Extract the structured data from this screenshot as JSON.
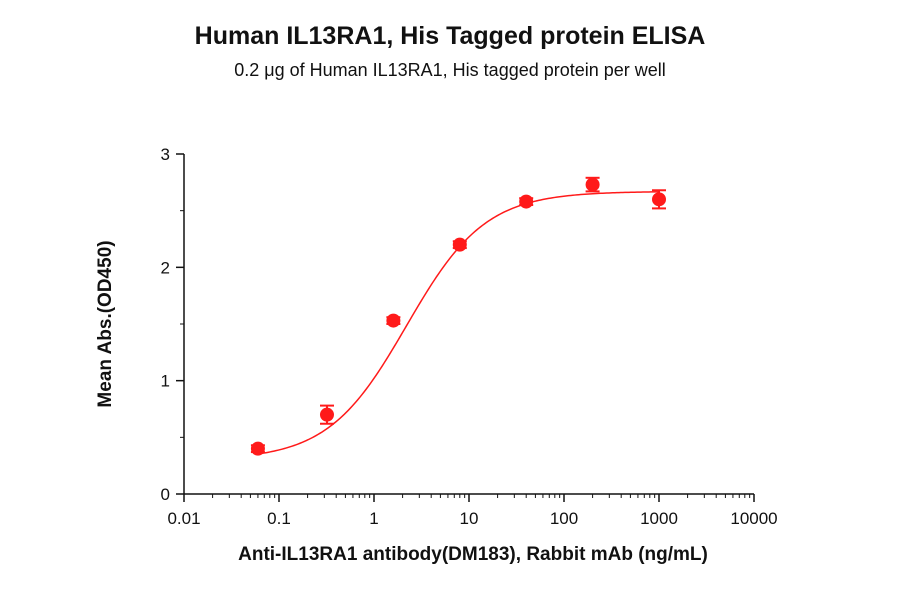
{
  "chart_data": {
    "type": "scatter",
    "title": "Human IL13RA1, His Tagged protein ELISA",
    "subtitle": "0.2 μg of Human IL13RA1, His tagged protein per well",
    "xlabel": "Anti-IL13RA1 antibody(DM183), Rabbit mAb (ng/mL)",
    "ylabel": "Mean Abs.(OD450)",
    "xscale": "log",
    "xlim": [
      0.01,
      10000
    ],
    "ylim": [
      0,
      3
    ],
    "xticks": [
      "0.01",
      "0.1",
      "1",
      "10",
      "100",
      "1000",
      "10000"
    ],
    "yticks": [
      "0",
      "1",
      "2",
      "3"
    ],
    "grid": false,
    "color": "#ff1a1a",
    "series": [
      {
        "x": [
          0.06,
          0.32,
          1.6,
          8,
          40,
          200,
          1000
        ],
        "y": [
          0.4,
          0.7,
          1.53,
          2.2,
          2.58,
          2.73,
          2.6
        ],
        "error": [
          0.03,
          0.08,
          0.03,
          0.03,
          0.03,
          0.06,
          0.08
        ]
      }
    ],
    "fit_curve": true
  }
}
